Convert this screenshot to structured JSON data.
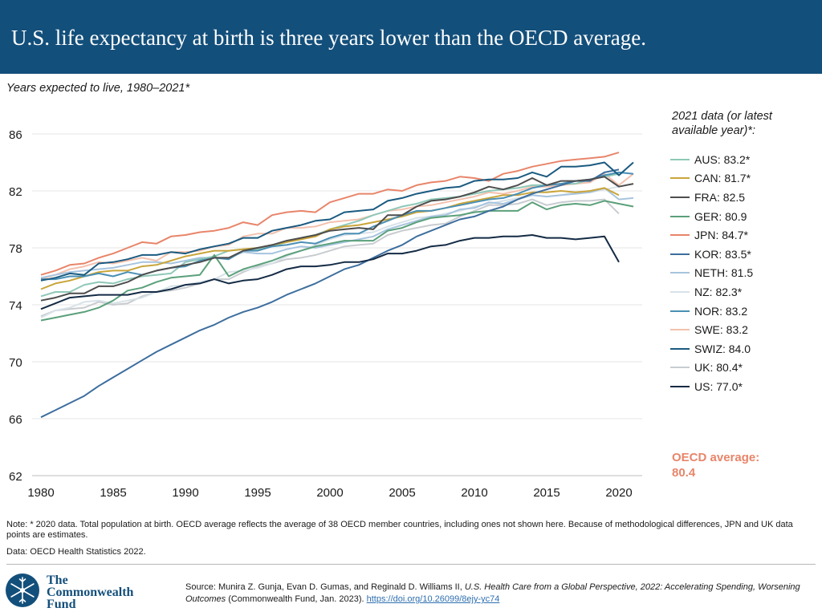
{
  "header": {
    "title": "U.S. life expectancy at birth is three years lower than the OECD average."
  },
  "subtitle": "Years expected to live, 1980–2021*",
  "legend": {
    "title_line1": "2021 data (or latest",
    "title_line2": "available year)*:"
  },
  "oecd": {
    "label": "OECD average:",
    "value": "80.4"
  },
  "chart_data": {
    "type": "line",
    "title": "Years expected to live, 1980–2021*",
    "xlabel": "",
    "ylabel": "",
    "xlim": [
      1980,
      2021
    ],
    "ylim": [
      62,
      86
    ],
    "yticks": [
      62,
      66,
      70,
      74,
      78,
      82,
      86
    ],
    "xticks": [
      1980,
      1985,
      1990,
      1995,
      2000,
      2005,
      2010,
      2015,
      2020
    ],
    "x": [
      1980,
      1981,
      1982,
      1983,
      1984,
      1985,
      1986,
      1987,
      1988,
      1989,
      1990,
      1991,
      1992,
      1993,
      1994,
      1995,
      1996,
      1997,
      1998,
      1999,
      2000,
      2001,
      2002,
      2003,
      2004,
      2005,
      2006,
      2007,
      2008,
      2009,
      2010,
      2011,
      2012,
      2013,
      2014,
      2015,
      2016,
      2017,
      2018,
      2019,
      2020,
      2021
    ],
    "series": [
      {
        "name": "AUS",
        "legend": "AUS: 83.2*",
        "color": "#8fc8b8",
        "values": [
          74.6,
          74.9,
          74.9,
          75.4,
          75.6,
          75.5,
          75.8,
          76.0,
          76.1,
          76.2,
          77.0,
          77.2,
          77.4,
          77.8,
          77.9,
          77.9,
          78.1,
          78.4,
          78.7,
          78.9,
          79.3,
          79.6,
          79.9,
          80.3,
          80.6,
          80.9,
          81.1,
          81.4,
          81.5,
          81.6,
          81.8,
          82.0,
          82.1,
          82.2,
          82.4,
          82.4,
          82.5,
          82.5,
          82.8,
          83.0,
          83.2,
          null
        ]
      },
      {
        "name": "CAN",
        "legend": "CAN: 81.7*",
        "color": "#c9a53a",
        "values": [
          75.1,
          75.5,
          75.7,
          76.0,
          76.3,
          76.4,
          76.4,
          76.7,
          76.8,
          77.1,
          77.4,
          77.6,
          77.8,
          77.8,
          77.9,
          78.0,
          78.2,
          78.4,
          78.6,
          78.8,
          79.3,
          79.5,
          79.6,
          79.8,
          80.0,
          80.2,
          80.5,
          80.6,
          80.8,
          81.1,
          81.3,
          81.5,
          81.7,
          81.7,
          81.9,
          81.9,
          82.0,
          81.9,
          82.0,
          82.2,
          81.7,
          null
        ]
      },
      {
        "name": "FRA",
        "legend": "FRA: 82.5",
        "color": "#4d4d4d",
        "values": [
          74.3,
          74.5,
          74.8,
          74.8,
          75.3,
          75.3,
          75.6,
          76.1,
          76.4,
          76.6,
          76.8,
          77.0,
          77.3,
          77.3,
          77.8,
          78.0,
          78.2,
          78.5,
          78.7,
          78.9,
          79.2,
          79.3,
          79.4,
          79.3,
          80.3,
          80.3,
          80.9,
          81.3,
          81.4,
          81.6,
          81.9,
          82.3,
          82.1,
          82.4,
          82.9,
          82.4,
          82.7,
          82.7,
          82.8,
          83.0,
          82.3,
          82.5
        ]
      },
      {
        "name": "GER",
        "legend": "GER: 80.9",
        "color": "#5aa07a",
        "values": [
          72.9,
          73.1,
          73.3,
          73.5,
          73.8,
          74.3,
          75.0,
          75.2,
          75.6,
          75.9,
          76.0,
          76.1,
          77.5,
          76.0,
          76.5,
          76.8,
          77.1,
          77.5,
          77.8,
          78.1,
          78.3,
          78.5,
          78.5,
          78.5,
          79.2,
          79.4,
          79.8,
          80.1,
          80.2,
          80.3,
          80.5,
          80.6,
          80.6,
          80.6,
          81.2,
          80.7,
          81.0,
          81.1,
          81.0,
          81.3,
          81.1,
          80.9
        ]
      },
      {
        "name": "JPN",
        "legend": "JPN: 84.7*",
        "color": "#e8856a",
        "values": [
          76.1,
          76.4,
          76.8,
          76.9,
          77.3,
          77.6,
          78.0,
          78.4,
          78.3,
          78.8,
          78.9,
          79.1,
          79.2,
          79.4,
          79.8,
          79.6,
          80.3,
          80.5,
          80.6,
          80.5,
          81.2,
          81.5,
          81.8,
          81.8,
          82.1,
          82.0,
          82.4,
          82.6,
          82.7,
          83.0,
          82.9,
          82.7,
          83.2,
          83.4,
          83.7,
          83.9,
          84.1,
          84.2,
          84.3,
          84.4,
          84.7,
          null
        ]
      },
      {
        "name": "KOR",
        "legend": "KOR: 83.5*",
        "color": "#3d6e9e",
        "values": [
          66.1,
          66.6,
          67.1,
          67.6,
          68.3,
          68.9,
          69.5,
          70.1,
          70.7,
          71.2,
          71.7,
          72.2,
          72.6,
          73.1,
          73.5,
          73.8,
          74.2,
          74.7,
          75.1,
          75.5,
          76.0,
          76.5,
          76.8,
          77.3,
          77.8,
          78.2,
          78.8,
          79.2,
          79.6,
          80.0,
          80.2,
          80.6,
          80.9,
          81.4,
          81.8,
          82.1,
          82.4,
          82.7,
          82.7,
          83.3,
          83.5,
          null
        ]
      },
      {
        "name": "NETH",
        "legend": "NETH: 81.5",
        "color": "#a7c4de",
        "values": [
          75.9,
          76.1,
          76.3,
          76.4,
          76.5,
          76.6,
          76.8,
          77.0,
          77.0,
          76.9,
          77.1,
          77.3,
          77.3,
          77.3,
          77.7,
          77.6,
          77.6,
          77.9,
          78.1,
          78.0,
          78.2,
          78.4,
          78.6,
          78.8,
          79.3,
          79.6,
          79.9,
          80.2,
          80.3,
          80.7,
          80.8,
          81.2,
          81.1,
          81.4,
          81.7,
          81.6,
          81.7,
          81.8,
          81.9,
          82.2,
          81.4,
          81.5
        ]
      },
      {
        "name": "NZ",
        "legend": "NZ: 82.3*",
        "color": "#d8e2e8",
        "values": [
          73.1,
          73.6,
          73.8,
          74.2,
          74.3,
          74.1,
          74.3,
          74.5,
          74.9,
          75.3,
          75.4,
          75.6,
          75.8,
          76.3,
          76.4,
          76.6,
          76.9,
          77.4,
          77.8,
          78.2,
          78.6,
          78.9,
          79.0,
          79.1,
          79.5,
          79.8,
          80.1,
          80.2,
          80.4,
          80.6,
          80.9,
          81.1,
          81.3,
          81.5,
          81.7,
          81.6,
          81.7,
          81.9,
          81.9,
          82.1,
          82.3,
          null
        ]
      },
      {
        "name": "NOR",
        "legend": "NOR: 83.2",
        "color": "#4a8fb4",
        "values": [
          75.8,
          75.8,
          76.0,
          76.0,
          76.2,
          76.0,
          76.3,
          76.1,
          76.4,
          76.6,
          76.7,
          77.1,
          77.3,
          77.2,
          77.8,
          77.8,
          78.1,
          78.2,
          78.4,
          78.3,
          78.7,
          79.0,
          79.0,
          79.5,
          79.9,
          80.3,
          80.6,
          80.6,
          80.8,
          81.0,
          81.2,
          81.4,
          81.5,
          81.8,
          82.2,
          82.4,
          82.5,
          82.7,
          82.8,
          83.1,
          83.3,
          83.2
        ]
      },
      {
        "name": "SWE",
        "legend": "SWE: 83.2",
        "color": "#f3c1ae",
        "values": [
          75.8,
          76.1,
          76.5,
          76.7,
          77.0,
          76.9,
          77.1,
          77.3,
          77.1,
          77.7,
          77.7,
          77.8,
          78.1,
          78.2,
          78.8,
          79.0,
          79.0,
          79.4,
          79.4,
          79.5,
          79.8,
          79.9,
          80.0,
          80.3,
          80.6,
          80.7,
          80.9,
          81.0,
          81.2,
          81.4,
          81.6,
          81.9,
          81.8,
          82.0,
          82.3,
          82.3,
          82.4,
          82.5,
          82.6,
          83.2,
          82.4,
          83.2
        ]
      },
      {
        "name": "SWIZ",
        "legend": "SWIZ: 84.0",
        "color": "#1a5a80",
        "values": [
          75.7,
          75.9,
          76.2,
          76.1,
          76.9,
          77.0,
          77.2,
          77.5,
          77.5,
          77.7,
          77.6,
          77.9,
          78.1,
          78.3,
          78.7,
          78.7,
          79.2,
          79.4,
          79.6,
          79.9,
          80.0,
          80.5,
          80.6,
          80.7,
          81.3,
          81.5,
          81.8,
          82.0,
          82.2,
          82.3,
          82.7,
          82.8,
          82.8,
          82.9,
          83.3,
          83.0,
          83.7,
          83.7,
          83.8,
          84.0,
          83.1,
          84.0
        ]
      },
      {
        "name": "UK",
        "legend": "UK: 80.4*",
        "color": "#c8ccd0",
        "values": [
          73.2,
          73.6,
          73.7,
          73.8,
          74.2,
          74.0,
          74.1,
          74.6,
          74.9,
          75.0,
          75.2,
          75.5,
          75.8,
          75.8,
          76.3,
          76.7,
          76.9,
          77.2,
          77.3,
          77.5,
          77.8,
          78.1,
          78.2,
          78.3,
          78.9,
          79.2,
          79.4,
          79.6,
          79.7,
          80.2,
          80.6,
          81.0,
          81.0,
          81.1,
          81.4,
          81.0,
          81.2,
          81.3,
          81.3,
          81.4,
          80.4,
          null
        ]
      },
      {
        "name": "US",
        "legend": "US: 77.0*",
        "color": "#142b45",
        "values": [
          73.7,
          74.1,
          74.5,
          74.6,
          74.7,
          74.7,
          74.7,
          74.9,
          74.9,
          75.1,
          75.4,
          75.5,
          75.8,
          75.5,
          75.7,
          75.8,
          76.1,
          76.5,
          76.7,
          76.7,
          76.8,
          77.0,
          77.0,
          77.2,
          77.6,
          77.6,
          77.8,
          78.1,
          78.2,
          78.5,
          78.7,
          78.7,
          78.8,
          78.8,
          78.9,
          78.7,
          78.7,
          78.6,
          78.7,
          78.8,
          77.0,
          null
        ]
      }
    ]
  },
  "footer": {
    "note": "Note: * 2020 data. Total population at birth. OECD average reflects the average of 38 OECD member countries, including ones not shown here. Because of methodological differences, JPN and UK data points are estimates.",
    "data_source": "Data: OECD Health Statistics 2022.",
    "logo_line1": "The",
    "logo_line2": "Commonwealth",
    "logo_line3": "Fund",
    "source_prefix": "Source: Munira Z. Gunja, Evan D. Gumas, and Reginald D. Williams II, ",
    "source_title": "U.S. Health Care from a Global Perspective, 2022: Accelerating Spending, Worsening Outcomes",
    "source_suffix": " (Commonwealth Fund, Jan. 2023). ",
    "source_link": "https://doi.org/10.26099/8ejy-yc74"
  }
}
